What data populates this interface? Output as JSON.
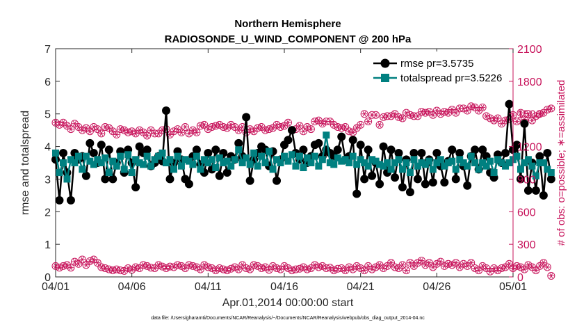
{
  "chart_data": {
    "type": "line",
    "title": "Northern Hemisphere",
    "subtitle": "RADIOSONDE_U_WIND_COMPONENT @ 200 hPa",
    "xlabel": "Apr.01,2014 00:00:00 start",
    "ylabel": "rmse and totalspread",
    "ylabel_right": "# of obs: o=possible; ∗=assimilated",
    "footnote": "data file: /Users/gharamti/Documents/NCAR/Reanalysis/~/Documents/NCAR/Reanalysis/webpub/obs_diag_output_2014-04.nc",
    "xlim": [
      0,
      30
    ],
    "ylim": [
      0,
      7
    ],
    "ylim_right": [
      0,
      2100
    ],
    "x_tick_labels": [
      "04/01",
      "04/06",
      "04/11",
      "04/16",
      "04/21",
      "04/26",
      "05/01"
    ],
    "x_tick_values": [
      0,
      5,
      10,
      15,
      20,
      25,
      30
    ],
    "y_ticks": [
      0,
      1,
      2,
      3,
      4,
      5,
      6,
      7
    ],
    "y_ticks_right": [
      0,
      300,
      600,
      900,
      1200,
      1500,
      1800,
      2100
    ],
    "legend": [
      "rmse pr=3.5735",
      "totalspread pr=3.5226"
    ],
    "colors": {
      "rmse": "#000000",
      "spread": "#008080",
      "obs": "#c7125a",
      "axis": "#262626"
    },
    "x_step_days": 0.25,
    "series": [
      {
        "name": "rmse",
        "values": [
          3.6,
          2.35,
          3.8,
          3.2,
          2.35,
          3.8,
          3.6,
          3.7,
          3.1,
          4.1,
          3.8,
          3.5,
          4.05,
          3.0,
          3.9,
          3.0,
          3.5,
          3.85,
          3.2,
          3.9,
          3.5,
          2.75,
          4.0,
          3.8,
          3.9,
          3.4,
          3.5,
          3.7,
          3.55,
          5.1,
          3.0,
          3.5,
          3.85,
          3.6,
          3.0,
          2.85,
          3.7,
          3.9,
          3.45,
          3.2,
          3.8,
          3.3,
          3.9,
          3.1,
          3.8,
          3.2,
          3.7,
          3.6,
          4.1,
          3.7,
          4.9,
          2.95,
          3.6,
          3.8,
          4.0,
          3.9,
          3.4,
          3.85,
          2.95,
          3.6,
          4.05,
          4.2,
          4.5,
          3.8,
          3.6,
          3.9,
          3.5,
          3.7,
          4.05,
          4.1,
          3.7,
          3.9,
          3.8,
          3.7,
          3.9,
          4.3,
          3.6,
          3.7,
          4.2,
          2.55,
          4.05,
          3.0,
          3.9,
          3.1,
          3.5,
          2.85,
          4.0,
          3.2,
          3.9,
          3.05,
          3.8,
          2.75,
          3.6,
          2.6,
          3.8,
          3.0,
          3.8,
          2.85,
          3.6,
          2.9,
          3.8,
          3.4,
          2.9,
          3.55,
          3.9,
          3.0,
          3.8,
          3.4,
          2.8,
          3.7,
          3.9,
          3.3,
          3.9,
          3.7,
          3.2,
          3.05,
          3.75,
          3.5,
          3.8,
          5.3,
          3.9,
          4.05,
          3.0,
          4.7,
          2.65,
          3.5,
          2.65,
          3.7,
          2.5,
          3.8,
          3.0
        ]
      },
      {
        "name": "totalspread",
        "values": [
          3.8,
          3.2,
          3.5,
          3.0,
          3.6,
          3.5,
          3.7,
          3.3,
          3.7,
          3.55,
          3.45,
          3.6,
          3.5,
          3.65,
          3.2,
          3.55,
          3.4,
          3.7,
          3.3,
          3.75,
          3.2,
          3.6,
          3.5,
          3.45,
          3.7,
          3.4,
          3.6,
          3.7,
          3.8,
          3.5,
          3.6,
          3.3,
          3.7,
          3.4,
          3.6,
          3.55,
          3.45,
          3.7,
          3.3,
          3.6,
          3.5,
          3.6,
          3.35,
          3.65,
          3.5,
          3.55,
          3.4,
          3.6,
          3.9,
          3.5,
          3.65,
          3.45,
          3.8,
          3.4,
          3.7,
          3.5,
          3.85,
          3.3,
          3.6,
          3.5,
          3.7,
          3.55,
          3.75,
          3.4,
          3.7,
          3.35,
          3.65,
          3.5,
          3.7,
          3.4,
          3.6,
          4.35,
          3.5,
          3.45,
          3.65,
          3.55,
          3.6,
          3.5,
          3.7,
          3.45,
          3.6,
          3.5,
          3.4,
          3.6,
          3.55,
          3.45,
          3.4,
          3.5,
          3.3,
          3.5,
          3.6,
          3.3,
          3.5,
          3.2,
          3.6,
          3.4,
          3.5,
          3.45,
          3.55,
          3.3,
          3.5,
          3.6,
          3.4,
          3.5,
          3.55,
          3.3,
          3.6,
          3.5,
          3.4,
          3.7,
          3.5,
          3.3,
          3.5,
          3.4,
          3.55,
          3.2,
          3.6,
          3.5,
          3.4,
          3.5,
          3.6,
          3.7,
          3.3,
          3.5,
          3.6,
          3.4,
          3.1,
          3.5,
          3.5,
          3.3,
          3.2
        ]
      },
      {
        "name": "obs_possible",
        "axis": "right",
        "values": [
          1420,
          1400,
          1420,
          1390,
          1360,
          1410,
          1380,
          1350,
          1370,
          1340,
          1380,
          1360,
          1320,
          1380,
          1370,
          1340,
          1310,
          1360,
          1350,
          1330,
          1340,
          1320,
          1350,
          1330,
          1300,
          1350,
          1320,
          1320,
          1350,
          1360,
          1310,
          1340,
          1360,
          1330,
          1380,
          1320,
          1350,
          1330,
          1390,
          1400,
          1360,
          1380,
          1390,
          1400,
          1380,
          1370,
          1400,
          1380,
          1350,
          1380,
          1330,
          1360,
          1340,
          1370,
          1380,
          1350,
          1360,
          1370,
          1400,
          1380,
          1390,
          1420,
          1350,
          1360,
          1390,
          1340,
          1380,
          1360,
          1430,
          1440,
          1410,
          1430,
          1430,
          1400,
          1380,
          1370,
          1380,
          1340,
          1330,
          1370,
          1400,
          1500,
          1430,
          1490,
          1490,
          1400,
          1470,
          1480,
          1480,
          1500,
          1470,
          1460,
          1510,
          1490,
          1480,
          1480,
          1520,
          1510,
          1520,
          1490,
          1530,
          1500,
          1520,
          1510,
          1540,
          1510,
          1550,
          1550,
          1530,
          1570,
          1560,
          1530,
          1560,
          1480,
          1460,
          1440,
          1460,
          1410,
          1440,
          1450,
          1490,
          1430,
          1510,
          1450,
          1500,
          1440,
          1480,
          1500,
          1510,
          1540,
          1550
        ]
      },
      {
        "name": "obs_assimilated",
        "axis": "right",
        "values": [
          100,
          85,
          100,
          110,
          85,
          140,
          120,
          160,
          110,
          145,
          160,
          130,
          90,
          80,
          70,
          60,
          70,
          60,
          55,
          80,
          65,
          90,
          80,
          110,
          100,
          85,
          80,
          110,
          95,
          80,
          95,
          90,
          110,
          100,
          80,
          110,
          100,
          90,
          70,
          110,
          90,
          80,
          60,
          80,
          70,
          60,
          75,
          90,
          70,
          110,
          80,
          70,
          110,
          100,
          80,
          90,
          65,
          100,
          80,
          70,
          100,
          80,
          60,
          70,
          75,
          90,
          70,
          80,
          110,
          90,
          100,
          80,
          85,
          60,
          75,
          80,
          60,
          90,
          70,
          100,
          80,
          60,
          100,
          70,
          90,
          110,
          80,
          100,
          130,
          90,
          80,
          110,
          60,
          130,
          100,
          130,
          150,
          110,
          130,
          90,
          120,
          140,
          100,
          120,
          110,
          130,
          90,
          120,
          100,
          130,
          80,
          60,
          100,
          80,
          50,
          80,
          60,
          80,
          90,
          120,
          80,
          100,
          90,
          70,
          110,
          90,
          60,
          100,
          130,
          90,
          10
        ]
      }
    ]
  }
}
